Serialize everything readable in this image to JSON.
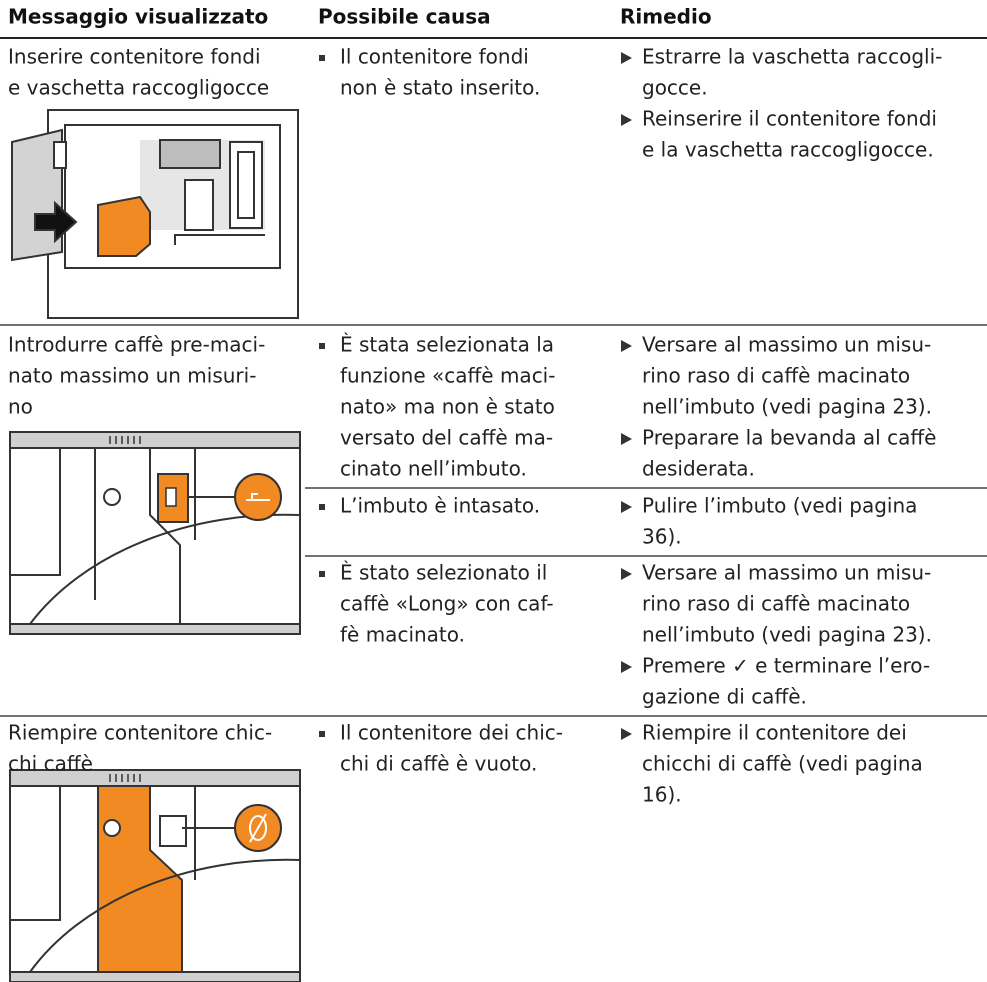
{
  "table": {
    "header": [
      "Messaggio visualizzato",
      "Possibile causa",
      "Rimedio"
    ],
    "rows": [
      {
        "message": [
          "Inserire contenitore fondi",
          "e vaschetta raccogligocce"
        ],
        "entries": [
          {
            "cause": [
              "Il contenitore fondi",
              "non è stato inserito."
            ],
            "remedies": [
              [
                "Estrarre la vaschetta raccogli-",
                "gocce."
              ],
              [
                "Reinserire il contenitore fondi",
                "e la vaschetta raccogligocce."
              ]
            ]
          }
        ]
      },
      {
        "message": [
          "Introdurre caffè pre-maci-",
          "nato massimo un misuri-",
          "no"
        ],
        "entries": [
          {
            "cause": [
              "È stata selezionata la",
              "funzione «caffè maci-",
              "nato» ma non è stato",
              "versato del caffè ma-",
              "cinato nell’imbuto."
            ],
            "remedies": [
              [
                "Versare al massimo un misu-",
                "rino raso di caffè macinato",
                "nell’imbuto (vedi pagina 23)."
              ],
              [
                "Preparare la bevanda al caffè",
                "desiderata."
              ]
            ]
          },
          {
            "cause": [
              "L’imbuto è intasato."
            ],
            "remedies": [
              [
                "Pulire l’imbuto (vedi pagina",
                "36)."
              ]
            ]
          },
          {
            "cause": [
              "È stato selezionato il",
              "caffè «Long» con caf-",
              "fè macinato."
            ],
            "remedies": [
              [
                "Versare al massimo un misu-",
                "rino raso di caffè macinato",
                "nell’imbuto (vedi pagina 23)."
              ],
              [
                "Premere ✓ e terminare l’ero-",
                "gazione di caffè."
              ]
            ]
          }
        ]
      },
      {
        "message": [
          "Riempire contenitore chic-",
          "chi caffè"
        ],
        "entries": [
          {
            "cause": [
              "Il contenitore dei chic-",
              "chi di caffè è vuoto."
            ],
            "remedies": [
              [
                "Riempire il contenitore dei",
                "chicchi di caffè (vedi pagina",
                "16)."
              ]
            ]
          }
        ]
      }
    ]
  }
}
